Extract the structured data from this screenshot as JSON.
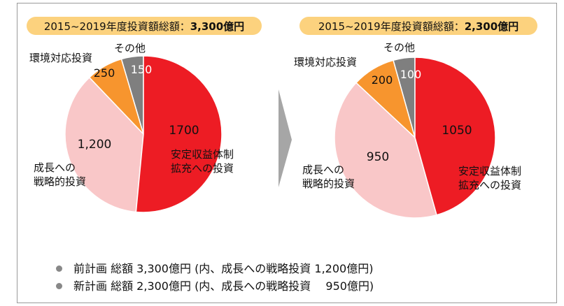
{
  "chart_data": [
    {
      "type": "pie",
      "title_prefix": "2015~2019年度投資額総額：",
      "title_value": "3,300億円",
      "slices": [
        {
          "name": "安定収益体制\n拡充への投資",
          "value": 1700,
          "label": "1700",
          "color": "#ed1c24"
        },
        {
          "name": "成長への\n戦略的投資",
          "value": 1200,
          "label": "1,200",
          "color": "#f9c7c8"
        },
        {
          "name": "環境対応投資",
          "value": 250,
          "label": "250",
          "color": "#f7952e"
        },
        {
          "name": "その他",
          "value": 150,
          "label": "150",
          "color": "#7f7f7f"
        }
      ]
    },
    {
      "type": "pie",
      "title_prefix": "2015~2019年度投資額総額：",
      "title_value": "2,300億円",
      "slices": [
        {
          "name": "安定収益体制\n拡充への投資",
          "value": 1050,
          "label": "1050",
          "color": "#ed1c24"
        },
        {
          "name": "成長への\n戦略的投資",
          "value": 950,
          "label": "950",
          "color": "#f9c7c8"
        },
        {
          "name": "環境対応投資",
          "value": 200,
          "label": "200",
          "color": "#f7952e"
        },
        {
          "name": "その他",
          "value": 100,
          "label": "100",
          "color": "#7f7f7f"
        }
      ]
    }
  ],
  "notes": [
    "前計画 総額 3,300億円 (内、成長への戦略投資 1,200億円)",
    "新計画 総額 2,300億円 (内、成長への戦略投資　 950億円)"
  ],
  "colors": {
    "pill": "#fcd27e",
    "arrow": "#a6a6a6",
    "bullet": "#888888"
  }
}
